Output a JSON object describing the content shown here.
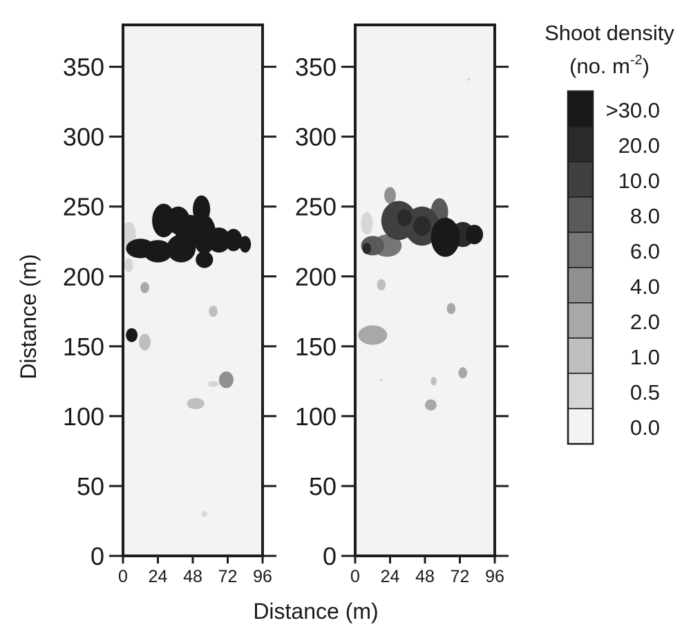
{
  "chart_data": {
    "type": "heatmap",
    "xlabel": "Distance (m)",
    "ylabel": "Distance (m)",
    "xlim": [
      0,
      96
    ],
    "ylim": [
      0,
      380
    ],
    "x_ticks": [
      0,
      24,
      48,
      72,
      96
    ],
    "y_ticks": [
      0,
      50,
      100,
      150,
      200,
      250,
      300,
      350
    ],
    "legend": {
      "title": "Shoot density",
      "unit": "(no. m",
      "unit_exp": "-2",
      "unit_close": ")",
      "placement": "right",
      "levels": [
        {
          "label": ">30.0",
          "color": "#191919"
        },
        {
          "label": "20.0",
          "color": "#2a2a2a"
        },
        {
          "label": "10.0",
          "color": "#404040"
        },
        {
          "label": "8.0",
          "color": "#5a5a5a"
        },
        {
          "label": "6.0",
          "color": "#767676"
        },
        {
          "label": "4.0",
          "color": "#909090"
        },
        {
          "label": "2.0",
          "color": "#a8a8a8"
        },
        {
          "label": "1.0",
          "color": "#bfbfbf"
        },
        {
          "label": "0.5",
          "color": "#d6d6d6"
        },
        {
          "label": "0.0",
          "color": "#f3f3f3"
        }
      ]
    },
    "panels": [
      {
        "blobs": [
          {
            "x": 28,
            "y": 240,
            "rx": 8,
            "ry": 12,
            "level": 0
          },
          {
            "x": 38,
            "y": 240,
            "rx": 8,
            "ry": 10,
            "level": 0
          },
          {
            "x": 46,
            "y": 232,
            "rx": 10,
            "ry": 12,
            "level": 0
          },
          {
            "x": 54,
            "y": 248,
            "rx": 6,
            "ry": 10,
            "level": 0
          },
          {
            "x": 56,
            "y": 230,
            "rx": 8,
            "ry": 14,
            "level": 0
          },
          {
            "x": 66,
            "y": 226,
            "rx": 8,
            "ry": 9,
            "level": 0
          },
          {
            "x": 76,
            "y": 226,
            "rx": 6,
            "ry": 8,
            "level": 0
          },
          {
            "x": 84,
            "y": 223,
            "rx": 4,
            "ry": 6,
            "level": 0
          },
          {
            "x": 12,
            "y": 220,
            "rx": 10,
            "ry": 7,
            "level": 0
          },
          {
            "x": 24,
            "y": 218,
            "rx": 10,
            "ry": 8,
            "level": 0
          },
          {
            "x": 40,
            "y": 220,
            "rx": 10,
            "ry": 10,
            "level": 0
          },
          {
            "x": 56,
            "y": 212,
            "rx": 6,
            "ry": 6,
            "level": 0
          },
          {
            "x": 4,
            "y": 230,
            "rx": 5,
            "ry": 9,
            "level": 8
          },
          {
            "x": 4,
            "y": 208,
            "rx": 3,
            "ry": 5,
            "level": 8
          },
          {
            "x": 15,
            "y": 192,
            "rx": 3,
            "ry": 4,
            "level": 6
          },
          {
            "x": 6,
            "y": 158,
            "rx": 4,
            "ry": 5,
            "level": 0
          },
          {
            "x": 15,
            "y": 153,
            "rx": 4,
            "ry": 6,
            "level": 7
          },
          {
            "x": 62,
            "y": 175,
            "rx": 3,
            "ry": 4,
            "level": 7
          },
          {
            "x": 71,
            "y": 126,
            "rx": 5,
            "ry": 6,
            "level": 5
          },
          {
            "x": 62,
            "y": 123,
            "rx": 4,
            "ry": 2,
            "level": 8
          },
          {
            "x": 50,
            "y": 109,
            "rx": 6,
            "ry": 4,
            "level": 7
          },
          {
            "x": 56,
            "y": 30,
            "rx": 2,
            "ry": 2,
            "level": 8
          }
        ]
      },
      {
        "blobs": [
          {
            "x": 24,
            "y": 258,
            "rx": 4,
            "ry": 6,
            "level": 5
          },
          {
            "x": 30,
            "y": 240,
            "rx": 12,
            "ry": 14,
            "level": 2
          },
          {
            "x": 46,
            "y": 236,
            "rx": 12,
            "ry": 14,
            "level": 2
          },
          {
            "x": 58,
            "y": 246,
            "rx": 6,
            "ry": 10,
            "level": 3
          },
          {
            "x": 62,
            "y": 228,
            "rx": 10,
            "ry": 14,
            "level": 0
          },
          {
            "x": 74,
            "y": 230,
            "rx": 8,
            "ry": 9,
            "level": 1
          },
          {
            "x": 82,
            "y": 230,
            "rx": 6,
            "ry": 7,
            "level": 0
          },
          {
            "x": 46,
            "y": 236,
            "rx": 6,
            "ry": 7,
            "level": 1
          },
          {
            "x": 34,
            "y": 242,
            "rx": 5,
            "ry": 6,
            "level": 1
          },
          {
            "x": 22,
            "y": 222,
            "rx": 10,
            "ry": 8,
            "level": 4
          },
          {
            "x": 12,
            "y": 222,
            "rx": 8,
            "ry": 7,
            "level": 3
          },
          {
            "x": 8,
            "y": 220,
            "rx": 3,
            "ry": 4,
            "level": 1
          },
          {
            "x": 8,
            "y": 238,
            "rx": 4,
            "ry": 8,
            "level": 8
          },
          {
            "x": 18,
            "y": 194,
            "rx": 3,
            "ry": 4,
            "level": 7
          },
          {
            "x": 12,
            "y": 158,
            "rx": 10,
            "ry": 7,
            "level": 6
          },
          {
            "x": 66,
            "y": 177,
            "rx": 3,
            "ry": 4,
            "level": 6
          },
          {
            "x": 74,
            "y": 131,
            "rx": 3,
            "ry": 4,
            "level": 6
          },
          {
            "x": 54,
            "y": 125,
            "rx": 2,
            "ry": 3,
            "level": 7
          },
          {
            "x": 52,
            "y": 108,
            "rx": 4,
            "ry": 4,
            "level": 6
          },
          {
            "x": 18,
            "y": 126,
            "rx": 1,
            "ry": 1,
            "level": 8
          },
          {
            "x": 78,
            "y": 341,
            "rx": 1,
            "ry": 1,
            "level": 8
          }
        ]
      }
    ]
  }
}
